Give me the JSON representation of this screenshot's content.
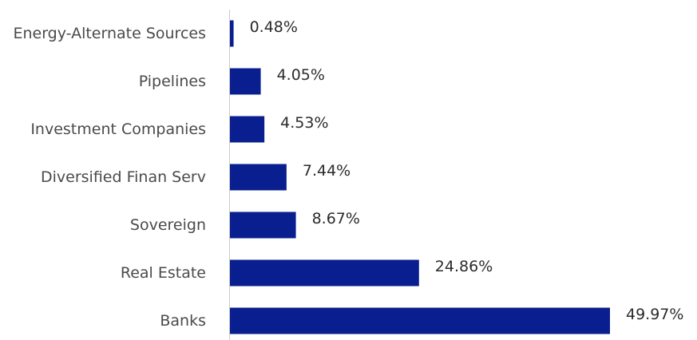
{
  "chart_data": {
    "type": "bar",
    "orientation": "horizontal",
    "categories": [
      "Energy-Alternate Sources",
      "Pipelines",
      "Investment Companies",
      "Diversified Finan Serv",
      "Sovereign",
      "Real Estate",
      "Banks"
    ],
    "values": [
      0.48,
      4.05,
      4.53,
      7.44,
      8.67,
      24.86,
      49.97
    ],
    "value_labels": [
      "0.48%",
      "4.05%",
      "4.53%",
      "7.44%",
      "8.67%",
      "24.86%",
      "49.97%"
    ],
    "title": "",
    "xlabel": "",
    "ylabel": "",
    "xlim": [
      0,
      49.97
    ],
    "grid": false,
    "legend": "none",
    "bar_color": "#0a1f8f",
    "axis_color": "#cccccc"
  }
}
